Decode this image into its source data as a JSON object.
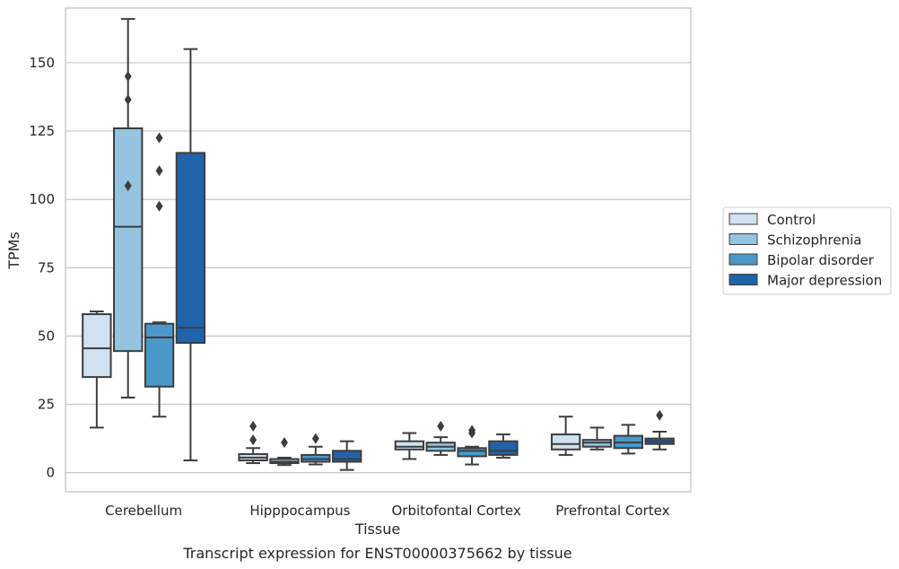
{
  "caption": "Transcript expression for ENST00000375662 by tissue",
  "chart_data": {
    "type": "boxplot",
    "title": "",
    "xlabel": "Tissue",
    "ylabel": "TPMs",
    "ylim": [
      -7,
      170
    ],
    "yticks": [
      0,
      25,
      50,
      75,
      100,
      125,
      150
    ],
    "grid": "horizontal",
    "legend_position": "right",
    "categories": [
      "Cerebellum",
      "Hipppocampus",
      "Orbitofontal Cortex",
      "Prefrontal Cortex"
    ],
    "series": [
      {
        "name": "Control",
        "color": "#d0e1f2",
        "boxes": [
          {
            "min": 16.5,
            "q1": 35,
            "median": 45.5,
            "q3": 58,
            "max": 59,
            "outliers": []
          },
          {
            "min": 3.5,
            "q1": 4.5,
            "median": 5.5,
            "q3": 6.8,
            "max": 9,
            "outliers": [
              12,
              17
            ]
          },
          {
            "min": 5,
            "q1": 8.5,
            "median": 9.5,
            "q3": 11.5,
            "max": 14.5,
            "outliers": []
          },
          {
            "min": 6.5,
            "q1": 8.5,
            "median": 10.5,
            "q3": 14,
            "max": 20.5,
            "outliers": []
          }
        ]
      },
      {
        "name": "Schizophrenia",
        "color": "#94c4df",
        "boxes": [
          {
            "min": 27.5,
            "q1": 44.5,
            "median": 90,
            "q3": 126,
            "max": 166,
            "outliers": [
              105,
              136.5,
              145
            ]
          },
          {
            "min": 2.8,
            "q1": 3.5,
            "median": 4,
            "q3": 5,
            "max": 5.5,
            "outliers": [
              11
            ]
          },
          {
            "min": 6.5,
            "q1": 8,
            "median": 9.5,
            "q3": 11,
            "max": 13,
            "outliers": [
              17
            ]
          },
          {
            "min": 8.5,
            "q1": 9.5,
            "median": 11,
            "q3": 12,
            "max": 16.5,
            "outliers": []
          }
        ]
      },
      {
        "name": "Bipolar disorder",
        "color": "#4a98c9",
        "boxes": [
          {
            "min": 20.5,
            "q1": 31.5,
            "median": 49.5,
            "q3": 54.5,
            "max": 55,
            "outliers": [
              97.5,
              110.5,
              122.5
            ]
          },
          {
            "min": 3,
            "q1": 4,
            "median": 5,
            "q3": 6.5,
            "max": 9.5,
            "outliers": [
              12.5
            ]
          },
          {
            "min": 3,
            "q1": 6,
            "median": 8,
            "q3": 9,
            "max": 9.5,
            "outliers": [
              14.5,
              15.5
            ]
          },
          {
            "min": 7,
            "q1": 9,
            "median": 11,
            "q3": 13.5,
            "max": 17.5,
            "outliers": []
          }
        ]
      },
      {
        "name": "Major depression",
        "color": "#2163aa",
        "boxes": [
          {
            "min": 4.5,
            "q1": 47.5,
            "median": 53,
            "q3": 117,
            "max": 155,
            "outliers": []
          },
          {
            "min": 1,
            "q1": 4,
            "median": 5,
            "q3": 8,
            "max": 11.5,
            "outliers": []
          },
          {
            "min": 5.5,
            "q1": 6.5,
            "median": 8,
            "q3": 11.5,
            "max": 14,
            "outliers": []
          },
          {
            "min": 8.5,
            "q1": 10.5,
            "median": 11.5,
            "q3": 12.5,
            "max": 15,
            "outliers": [
              21
            ]
          }
        ]
      }
    ]
  }
}
